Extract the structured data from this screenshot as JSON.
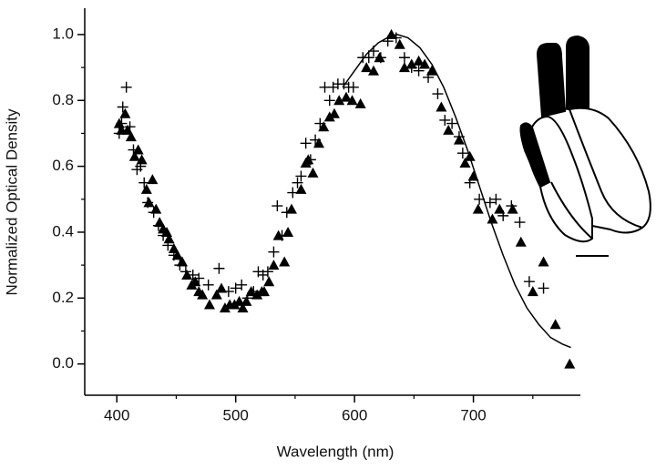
{
  "chart_data": {
    "type": "scatter",
    "x_label": "Wavelength (nm)",
    "y_label": "Normalized Optical Density",
    "xlim": [
      373,
      790
    ],
    "ylim": [
      -0.095,
      1.08
    ],
    "xticks": [
      400,
      500,
      600,
      700
    ],
    "xminorticks": [
      450,
      550,
      650,
      750
    ],
    "yticks": [
      {
        "value": 0,
        "label": "0.0"
      },
      {
        "value": 0.2,
        "label": "0.2"
      },
      {
        "value": 0.4,
        "label": "0.4"
      },
      {
        "value": 0.6,
        "label": "0.6"
      },
      {
        "value": 0.8,
        "label": "0.8"
      },
      {
        "value": 1,
        "label": "1.0"
      }
    ],
    "yminorticks": [
      0.1,
      0.3,
      0.5,
      0.7,
      0.9
    ],
    "series": [
      {
        "marker": "triangle",
        "color": "#000000",
        "x": [
          402,
          404,
          407,
          409,
          412,
          415,
          418,
          421,
          425,
          427,
          430,
          433,
          436,
          439,
          442,
          444,
          448,
          451,
          455,
          459,
          463,
          466,
          469,
          472,
          478,
          484,
          488,
          491,
          495,
          499,
          503,
          506,
          509,
          513,
          518,
          522,
          524,
          528,
          532,
          536,
          541,
          544,
          547,
          555,
          559,
          561,
          565,
          570,
          574,
          579,
          583,
          587,
          593,
          598,
          605,
          610,
          616,
          621,
          631,
          638,
          642,
          648,
          654,
          659,
          665,
          673,
          679,
          688,
          693,
          697,
          700,
          704,
          716,
          722,
          733,
          740,
          750,
          759,
          769,
          781
        ],
        "values": [
          0.73,
          0.71,
          0.76,
          0.71,
          0.69,
          0.63,
          0.65,
          0.62,
          0.53,
          0.49,
          0.56,
          0.47,
          0.43,
          0.41,
          0.4,
          0.38,
          0.35,
          0.33,
          0.31,
          0.27,
          0.24,
          0.25,
          0.22,
          0.21,
          0.18,
          0.21,
          0.23,
          0.17,
          0.18,
          0.18,
          0.19,
          0.17,
          0.19,
          0.22,
          0.21,
          0.22,
          0.22,
          0.25,
          0.3,
          0.39,
          0.31,
          0.4,
          0.47,
          0.53,
          0.61,
          0.62,
          0.58,
          0.67,
          0.72,
          0.75,
          0.76,
          0.8,
          0.81,
          0.8,
          0.79,
          0.9,
          0.89,
          0.93,
          1.0,
          0.97,
          0.9,
          0.91,
          0.92,
          0.91,
          0.89,
          0.78,
          0.71,
          0.68,
          0.61,
          0.63,
          0.57,
          0.47,
          0.44,
          0.47,
          0.47,
          0.37,
          0.22,
          0.31,
          0.12,
          0.0
        ]
      },
      {
        "marker": "plus",
        "color": "#000000",
        "x": [
          402,
          404,
          405,
          408,
          411,
          414,
          417,
          420,
          423,
          426,
          431,
          435,
          439,
          443,
          448,
          453,
          458,
          464,
          469,
          477,
          486,
          494,
          500,
          505,
          510,
          515,
          519,
          523,
          527,
          532,
          535,
          539,
          543,
          548,
          552,
          555,
          559,
          563,
          567,
          571,
          575,
          579,
          582,
          586,
          591,
          595,
          599,
          607,
          612,
          616,
          622,
          628,
          635,
          642,
          648,
          654,
          662,
          670,
          676,
          682,
          688,
          691,
          697,
          705,
          714,
          719,
          725,
          732,
          739,
          747,
          759
        ],
        "values": [
          0.7,
          0.73,
          0.78,
          0.84,
          0.72,
          0.65,
          0.59,
          0.6,
          0.55,
          0.49,
          0.46,
          0.42,
          0.39,
          0.36,
          0.33,
          0.3,
          0.28,
          0.27,
          0.26,
          0.24,
          0.29,
          0.22,
          0.23,
          0.24,
          0.2,
          0.22,
          0.28,
          0.27,
          0.28,
          0.34,
          0.48,
          0.39,
          0.46,
          0.52,
          0.55,
          0.57,
          0.67,
          0.62,
          0.68,
          0.73,
          0.84,
          0.8,
          0.84,
          0.85,
          0.85,
          0.84,
          0.84,
          0.93,
          0.93,
          0.95,
          0.93,
          0.98,
          0.99,
          0.93,
          0.9,
          0.89,
          0.87,
          0.82,
          0.74,
          0.73,
          0.69,
          0.64,
          0.55,
          0.5,
          0.49,
          0.5,
          0.45,
          0.48,
          0.43,
          0.25,
          0.23
        ]
      },
      {
        "marker": "none",
        "line": true,
        "color": "#000000",
        "x": [
          590,
          600,
          610,
          620,
          630,
          636,
          645,
          655,
          665,
          675,
          685,
          695,
          705,
          715,
          725,
          735,
          745,
          755,
          765,
          775,
          782
        ],
        "values": [
          0.84,
          0.89,
          0.94,
          0.975,
          0.995,
          1.0,
          0.99,
          0.96,
          0.91,
          0.84,
          0.75,
          0.65,
          0.54,
          0.43,
          0.33,
          0.24,
          0.17,
          0.12,
          0.08,
          0.06,
          0.05
        ]
      }
    ]
  }
}
